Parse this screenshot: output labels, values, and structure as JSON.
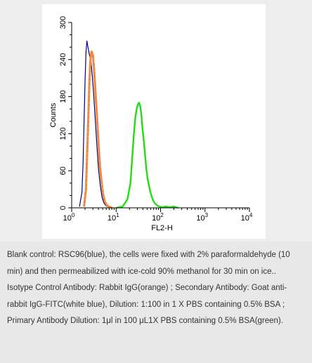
{
  "chart_data": {
    "type": "line",
    "xlabel": "FL2-H",
    "ylabel": "Counts",
    "xscale": "log",
    "xlim": [
      1,
      10000
    ],
    "ylim": [
      0,
      300
    ],
    "x_ticks": [
      {
        "base": "10",
        "exp": "0",
        "value": 1
      },
      {
        "base": "10",
        "exp": "1",
        "value": 10
      },
      {
        "base": "10",
        "exp": "2",
        "value": 100
      },
      {
        "base": "10",
        "exp": "3",
        "value": 1000
      },
      {
        "base": "10",
        "exp": "4",
        "value": 10000
      }
    ],
    "y_ticks": [
      "0",
      "60",
      "120",
      "180",
      "240",
      "300"
    ],
    "grid": false,
    "series": [
      {
        "color": "#00008b",
        "width": 1.2,
        "x": [
          1.5,
          1.7,
          1.8,
          1.9,
          2.0,
          2.1,
          2.2,
          2.3,
          2.5,
          2.7,
          2.9,
          3.1,
          3.4,
          3.7,
          4.0,
          4.4,
          4.8,
          5.3,
          5.8,
          6.4,
          7.0,
          7.8
        ],
        "y": [
          2,
          25,
          70,
          140,
          205,
          252,
          270,
          262,
          248,
          240,
          214,
          188,
          142,
          100,
          64,
          36,
          18,
          8,
          4,
          2,
          1,
          0
        ]
      },
      {
        "color": "#ff7f24",
        "width": 3.0,
        "x": [
          1.9,
          2.1,
          2.3,
          2.5,
          2.65,
          2.8,
          3.0,
          3.2,
          3.4,
          3.7,
          4.0,
          4.3,
          4.7,
          5.1,
          5.6,
          6.1,
          6.7,
          7.4,
          8.2
        ],
        "y": [
          2,
          30,
          115,
          200,
          240,
          253,
          248,
          225,
          192,
          150,
          108,
          70,
          42,
          22,
          10,
          5,
          2,
          1,
          0
        ]
      },
      {
        "color": "#a8b4c4",
        "width": 1.2,
        "dasharray": "3,3",
        "x": [
          2.0,
          2.2,
          2.4,
          2.6,
          2.8,
          3.0,
          3.2,
          3.5,
          3.8,
          4.1,
          4.5,
          4.9,
          5.4,
          6.0,
          6.8
        ],
        "y": [
          5,
          60,
          150,
          215,
          246,
          250,
          235,
          200,
          155,
          112,
          70,
          38,
          16,
          5,
          0
        ]
      },
      {
        "color": "#22dd11",
        "width": 2.4,
        "x": [
          10,
          14,
          18,
          21,
          23,
          25,
          27,
          29,
          31,
          33,
          35,
          37,
          39,
          42,
          45,
          48,
          52,
          57,
          62,
          68,
          75,
          83,
          95,
          110,
          130,
          160,
          200,
          250
        ],
        "y": [
          0,
          2,
          14,
          40,
          80,
          118,
          146,
          160,
          168,
          170,
          164,
          150,
          130,
          108,
          84,
          62,
          44,
          30,
          20,
          12,
          7,
          4,
          2,
          1,
          2,
          1,
          2,
          0
        ]
      }
    ]
  },
  "caption": [
    "Blank control: RSC96(blue), the cells were fixed with 2% paraformaldehyde (10 min) and then permeabilized with ice-cold 90% methanol for 30 min on ice..",
    "Isotype Control Antibody: Rabbit IgG(orange) ; Secondary Antibody: Goat anti-rabbit IgG-FITC(white blue), Dilution: 1:100 in 1 X PBS containing 0.5% BSA ; Primary Antibody Dilution: 1μl in 100 μL1X PBS containing 0.5% BSA(green)."
  ]
}
